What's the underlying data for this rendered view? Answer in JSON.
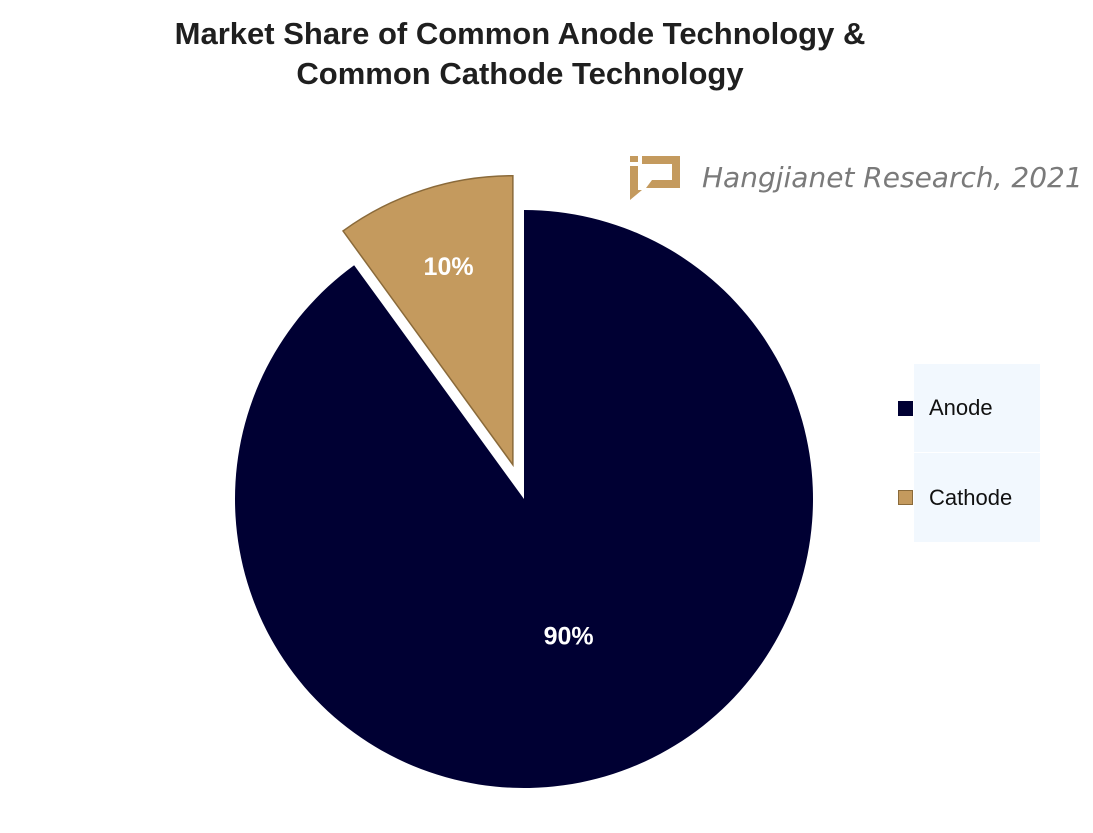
{
  "chart_data": {
    "type": "pie",
    "title_lines": [
      "Market Share of Common Anode Technology &",
      "Common Cathode Technology"
    ],
    "slices": [
      {
        "name": "Anode",
        "value": 90,
        "label": "90%",
        "color": "#000033"
      },
      {
        "name": "Cathode",
        "value": 10,
        "label": "10%",
        "color": "#c49a5e",
        "exploded": true
      }
    ],
    "legend": {
      "placement": "right",
      "items": [
        "Anode",
        "Cathode"
      ]
    },
    "start_angle": "12 o'clock",
    "direction": "clockwise"
  },
  "source": {
    "text": "Hangjianet Research, 2021",
    "logo": "ijd-logo-icon",
    "logo_color": "#c49a5e"
  }
}
